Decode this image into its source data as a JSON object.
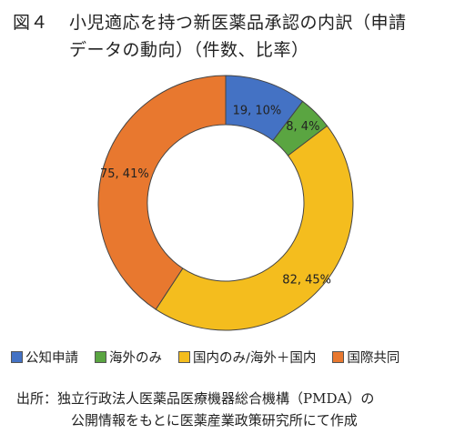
{
  "title": {
    "figure_no": "図４",
    "line1": "小児適応を持つ新医薬品承認の内訳（申請",
    "line2": "データの動向）（件数、比率）"
  },
  "chart_data": {
    "type": "pie",
    "donut": true,
    "categories": [
      "公知申請",
      "海外のみ",
      "国内のみ/海外＋国内",
      "国際共同"
    ],
    "values": [
      19,
      8,
      82,
      75
    ],
    "percents": [
      10,
      4,
      45,
      41
    ],
    "labels": [
      "19, 10%",
      "8, 4%",
      "82, 45%",
      "75, 41%"
    ],
    "colors": [
      "#4472c4",
      "#5aa541",
      "#f4bd1e",
      "#e8782f"
    ],
    "legend_position": "bottom"
  },
  "source": {
    "line1": "出所：独立行政法人医薬品医療機器総合機構（PMDA）の",
    "line2": "公開情報をもとに医薬産業政策研究所にて作成"
  }
}
